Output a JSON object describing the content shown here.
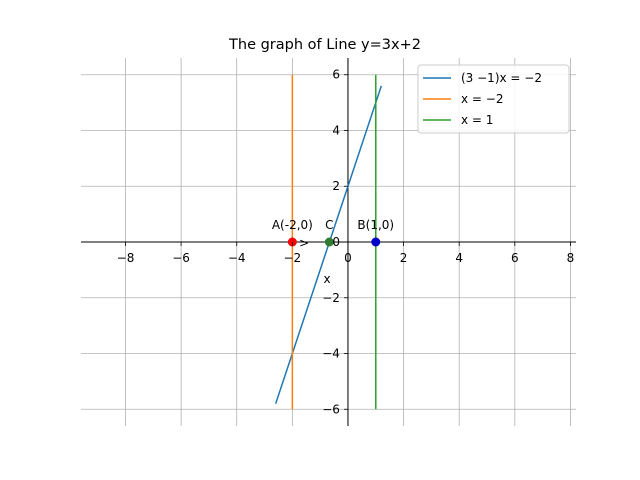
{
  "chart_data": {
    "type": "line",
    "title": "The graph of Line y=3x+2",
    "xlim": [
      -9.6,
      8.2
    ],
    "ylim": [
      -6.6,
      6.6
    ],
    "xticks": [
      -8,
      -6,
      -4,
      -2,
      0,
      2,
      4,
      6,
      8
    ],
    "xtick_labels": [
      "−8",
      "−6",
      "−4",
      "−2",
      "0",
      "2",
      "4",
      "6",
      "8"
    ],
    "yticks": [
      -6,
      -4,
      -2,
      0,
      2,
      4,
      6
    ],
    "ytick_labels": [
      "−6",
      "−4",
      "−2",
      "0",
      "2",
      "4",
      "6"
    ],
    "xlabel": "x",
    "grid": true,
    "legend_position": "top-right",
    "series": [
      {
        "name": "(3  −1)x = −2",
        "color": "#1f77b4",
        "x": [
          -2.6,
          1.2
        ],
        "y": [
          -5.8,
          5.6
        ]
      },
      {
        "name": "x = −2",
        "color": "#ff7f0e",
        "x": [
          -2,
          -2
        ],
        "y": [
          -6,
          6
        ]
      },
      {
        "name": "x = 1",
        "color": "#2ca02c",
        "x": [
          1,
          1
        ],
        "y": [
          -6,
          6
        ]
      }
    ],
    "points": [
      {
        "label": "A(-2,0)",
        "x": -2,
        "y": 0,
        "color": "#ff0000"
      },
      {
        "label": "B(1,0)",
        "x": 1,
        "y": 0,
        "color": "#0000cc"
      },
      {
        "label": "C",
        "x": -0.67,
        "y": 0,
        "color": "#2e7d32"
      }
    ]
  }
}
